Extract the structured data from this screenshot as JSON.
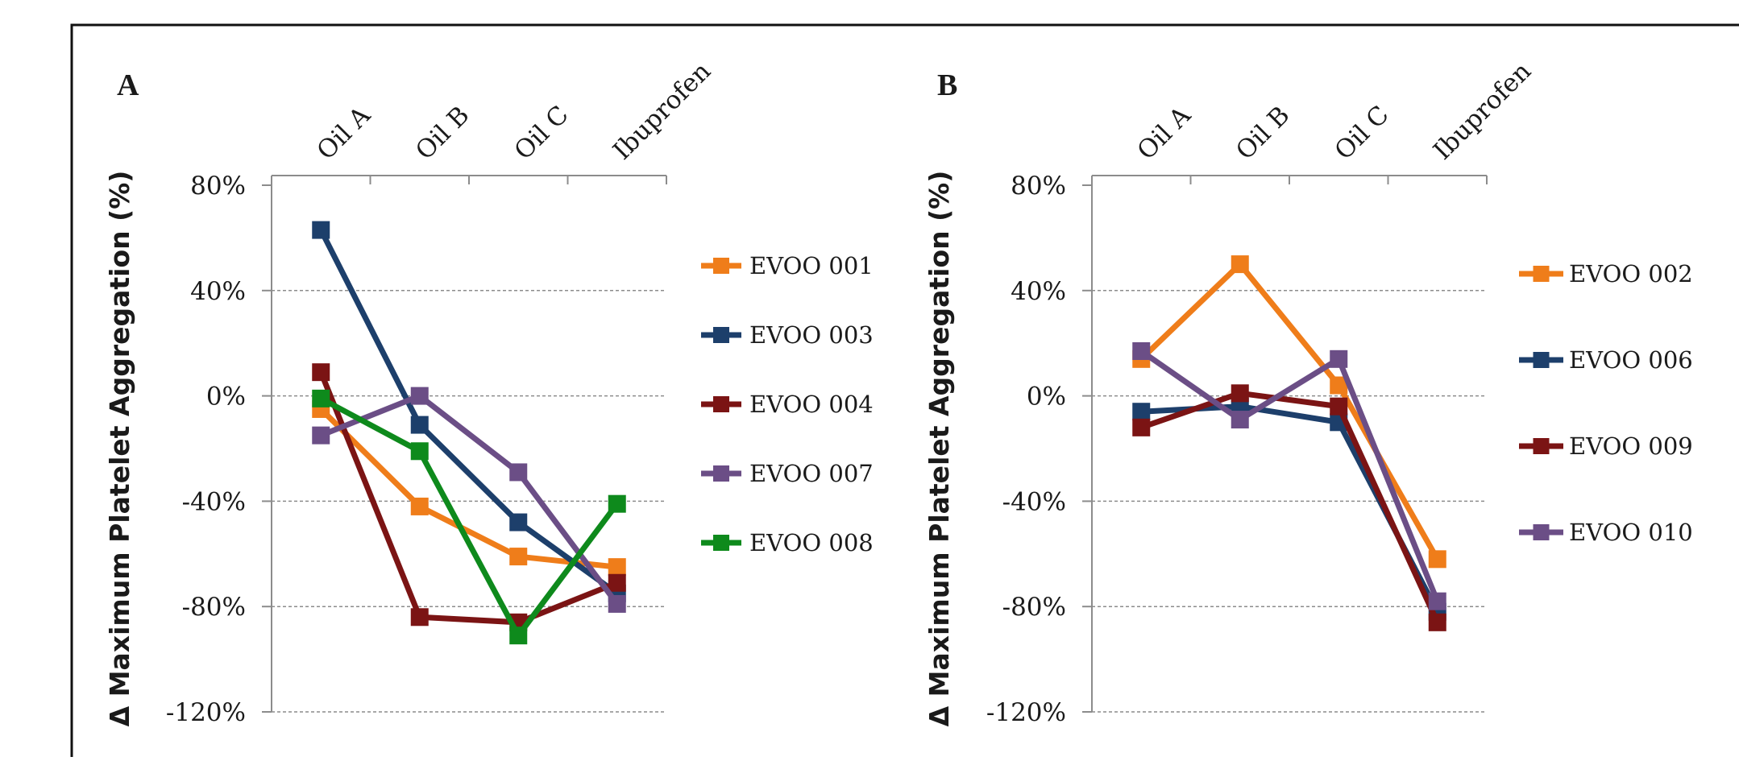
{
  "chart_data": [
    {
      "type": "line",
      "panel_label": "A",
      "categories": [
        "Oil A",
        "Oil B",
        "Oil C",
        "Ibuprofen"
      ],
      "ylabel": "Δ Maximum Platelet Aggregation (%)",
      "xlabel": "",
      "ylim": [
        -120,
        80
      ],
      "yticks": [
        80,
        40,
        0,
        -40,
        -80,
        -120
      ],
      "ytick_labels": [
        "80%",
        "40%",
        "0%",
        "-40%",
        "-80%",
        "-120%"
      ],
      "x_axis_position": "top",
      "grid": "horizontal dashed",
      "legend_position": "right",
      "series": [
        {
          "name": "EVOO 001",
          "color": "#ef7d1a",
          "values": [
            -5,
            -42,
            -61,
            -65
          ]
        },
        {
          "name": "EVOO 003",
          "color": "#1d3f6b",
          "values": [
            63,
            -11,
            -48,
            -75
          ]
        },
        {
          "name": "EVOO 004",
          "color": "#7b1414",
          "values": [
            9,
            -84,
            -86,
            -71
          ]
        },
        {
          "name": "EVOO 007",
          "color": "#6b4e86",
          "values": [
            -15,
            0,
            -29,
            -79
          ]
        },
        {
          "name": "EVOO 008",
          "color": "#0e8a1c",
          "values": [
            -1,
            -21,
            -91,
            -41
          ]
        }
      ]
    },
    {
      "type": "line",
      "panel_label": "B",
      "categories": [
        "Oil A",
        "Oil B",
        "Oil C",
        "Ibuprofen"
      ],
      "ylabel": "Δ Maximum Platelet Aggregation (%)",
      "xlabel": "",
      "ylim": [
        -120,
        80
      ],
      "yticks": [
        80,
        40,
        0,
        -40,
        -80,
        -120
      ],
      "ytick_labels": [
        "80%",
        "40%",
        "0%",
        "-40%",
        "-80%",
        "-120%"
      ],
      "x_axis_position": "top",
      "grid": "horizontal dashed",
      "legend_position": "right",
      "series": [
        {
          "name": "EVOO 002",
          "color": "#ef7d1a",
          "values": [
            14,
            50,
            4,
            -62
          ]
        },
        {
          "name": "EVOO 006",
          "color": "#1d3f6b",
          "values": [
            -6,
            -4,
            -10,
            -82
          ]
        },
        {
          "name": "EVOO 009",
          "color": "#7b1414",
          "values": [
            -12,
            1,
            -4,
            -86
          ]
        },
        {
          "name": "EVOO 010",
          "color": "#6b4e86",
          "values": [
            17,
            -9,
            14,
            -78
          ]
        }
      ]
    }
  ]
}
